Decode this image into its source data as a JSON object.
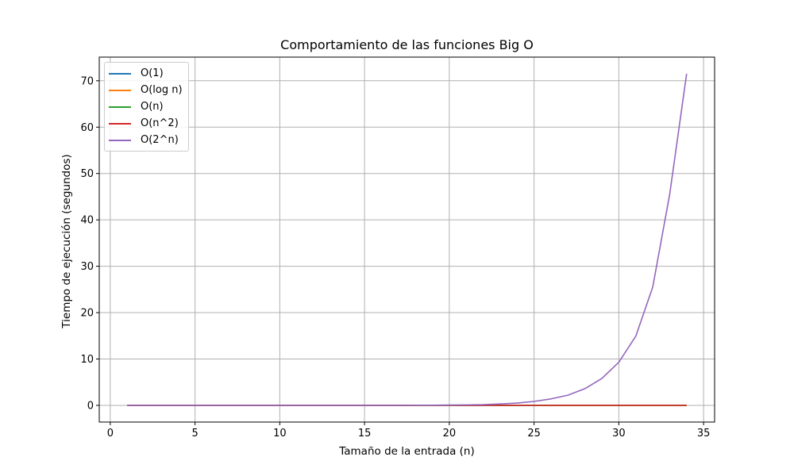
{
  "chart_data": {
    "type": "line",
    "title": "Comportamiento de las funciones Big O",
    "xlabel": "Tamaño de la entrada (n)",
    "ylabel": "Tiempo de ejecución (segundos)",
    "xlim": [
      -0.65,
      35.65
    ],
    "ylim": [
      -3.6,
      75.1
    ],
    "x_ticks": [
      0,
      5,
      10,
      15,
      20,
      25,
      30,
      35
    ],
    "y_ticks": [
      0,
      10,
      20,
      30,
      40,
      50,
      60,
      70
    ],
    "grid": true,
    "legend_position": "top-left",
    "x": [
      1,
      2,
      3,
      4,
      5,
      6,
      7,
      8,
      9,
      10,
      11,
      12,
      13,
      14,
      15,
      16,
      17,
      18,
      19,
      20,
      21,
      22,
      23,
      24,
      25,
      26,
      27,
      28,
      29,
      30,
      31,
      32,
      33,
      34
    ],
    "series": [
      {
        "name": "O(1)",
        "color": "#1f77b4",
        "values": [
          0,
          0,
          0,
          0,
          0,
          0,
          0,
          0,
          0,
          0,
          0,
          0,
          0,
          0,
          0,
          0,
          0,
          0,
          0,
          0,
          0,
          0,
          0,
          0,
          0,
          0,
          0,
          0,
          0,
          0,
          0,
          0,
          0,
          0
        ]
      },
      {
        "name": "O(log n)",
        "color": "#ff7f0e",
        "values": [
          0,
          0,
          0,
          0,
          0,
          0,
          0,
          0,
          0,
          0,
          0,
          0,
          0,
          0,
          0,
          0,
          0,
          0,
          0,
          0,
          0,
          0,
          0,
          0,
          0,
          0,
          0,
          0,
          0,
          0,
          0,
          0,
          0,
          0
        ]
      },
      {
        "name": "O(n)",
        "color": "#2ca02c",
        "values": [
          0,
          0,
          0,
          0,
          0,
          0,
          0,
          0,
          0,
          0,
          0,
          0,
          0,
          0,
          0,
          0,
          0,
          0,
          0,
          0,
          0,
          0,
          0,
          0,
          0,
          0,
          0,
          0,
          0,
          0,
          0,
          0,
          0,
          0
        ]
      },
      {
        "name": "O(n^2)",
        "color": "#d62728",
        "values": [
          0,
          0,
          0,
          0,
          0,
          0,
          0,
          0,
          0,
          0,
          0,
          0,
          0,
          0,
          0,
          0,
          0,
          0,
          0,
          0,
          0,
          0,
          0,
          0,
          0,
          0,
          0,
          0,
          0,
          0,
          0,
          0,
          0,
          0
        ]
      },
      {
        "name": "O(2^n)",
        "color": "#9467bd",
        "values": [
          0,
          0,
          0,
          0,
          0,
          0,
          0,
          0,
          0,
          0,
          0,
          0,
          0,
          0,
          0,
          0,
          0.01,
          0.02,
          0.03,
          0.07,
          0.1,
          0.15,
          0.3,
          0.5,
          0.85,
          1.4,
          2.2,
          3.6,
          5.8,
          9.3,
          14.9,
          25.5,
          45.5,
          71.5
        ]
      }
    ]
  }
}
